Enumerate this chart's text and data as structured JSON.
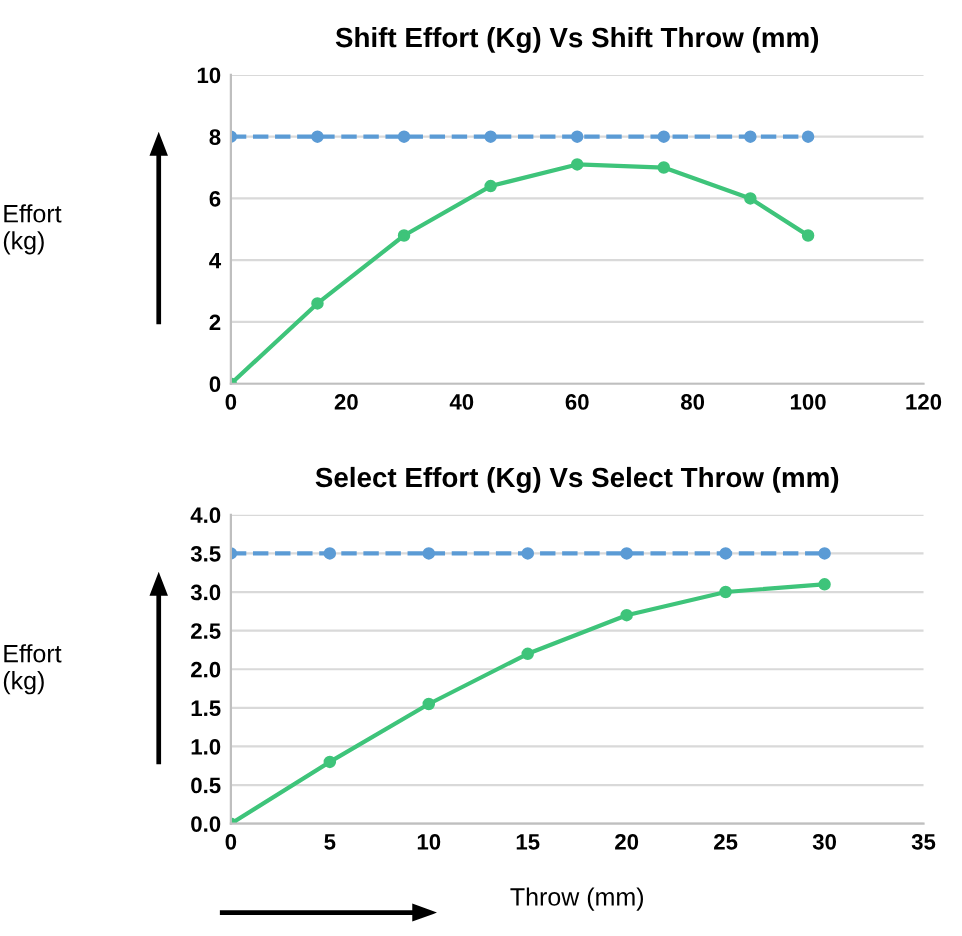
{
  "chart_data": [
    {
      "type": "line",
      "title": "Shift Effort (Kg) Vs Shift Throw (mm)",
      "ylabel": "Effort\n(kg)",
      "xlim": [
        0,
        120
      ],
      "xticks": [
        0,
        20,
        40,
        60,
        80,
        100,
        120
      ],
      "ylim": [
        0,
        10
      ],
      "yticks": [
        0,
        2,
        4,
        6,
        8,
        10
      ],
      "grid": "y",
      "marker": "circle",
      "series": [
        {
          "color": "#3ec47a",
          "x": [
            0,
            15,
            30,
            45,
            60,
            75,
            90,
            100
          ],
          "values": [
            0,
            2.6,
            4.8,
            6.4,
            7.1,
            7.0,
            6.0,
            4.8
          ]
        },
        {
          "color": "#5b9bd5",
          "line_style": "dashed",
          "x": [
            0,
            15,
            30,
            45,
            60,
            75,
            90,
            100
          ],
          "values": [
            8,
            8,
            8,
            8,
            8,
            8,
            8,
            8
          ]
        }
      ]
    },
    {
      "type": "line",
      "title": "Select Effort (Kg) Vs Select Throw (mm)",
      "ylabel": "Effort\n(kg)",
      "xlabel": "Throw (mm)",
      "xlim": [
        0,
        35
      ],
      "xticks": [
        0,
        5,
        10,
        15,
        20,
        25,
        30,
        35
      ],
      "ylim": [
        0,
        4
      ],
      "yticks": [
        {
          "value": 0,
          "label": "0.0"
        },
        {
          "value": 0.5,
          "label": "0.5"
        },
        {
          "value": 1,
          "label": "1.0"
        },
        {
          "value": 1.5,
          "label": "1.5"
        },
        {
          "value": 2,
          "label": "2.0"
        },
        {
          "value": 2.5,
          "label": "2.5"
        },
        {
          "value": 3,
          "label": "3.0"
        },
        {
          "value": 3.5,
          "label": "3.5"
        },
        {
          "value": 4,
          "label": "4.0"
        }
      ],
      "grid": "y",
      "marker": "circle",
      "series": [
        {
          "color": "#3ec47a",
          "x": [
            0,
            5,
            10,
            15,
            20,
            25,
            30
          ],
          "values": [
            0,
            0.8,
            1.55,
            2.2,
            2.7,
            3.0,
            3.1
          ]
        },
        {
          "color": "#5b9bd5",
          "line_style": "dashed",
          "x": [
            0,
            5,
            10,
            15,
            20,
            25,
            30
          ],
          "values": [
            3.5,
            3.5,
            3.5,
            3.5,
            3.5,
            3.5,
            3.5
          ]
        }
      ]
    }
  ]
}
